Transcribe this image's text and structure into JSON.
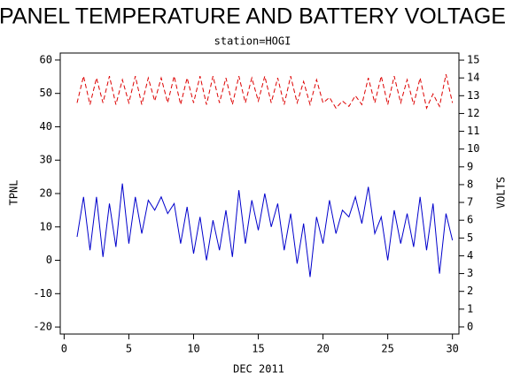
{
  "chart_data": {
    "type": "line",
    "title": "PANEL TEMPERATURE AND BATTERY VOLTAGE",
    "subtitle": "station=HOGI",
    "x_label": "DEC 2011",
    "y_label": "TPNL",
    "y2_label": "VOLTS",
    "x": [
      1,
      1.5,
      2,
      2.5,
      3,
      3.5,
      4,
      4.5,
      5,
      5.5,
      6,
      6.5,
      7,
      7.5,
      8,
      8.5,
      9,
      9.5,
      10,
      10.5,
      11,
      11.5,
      12,
      12.5,
      13,
      13.5,
      14,
      14.5,
      15,
      15.5,
      16,
      16.5,
      17,
      17.5,
      18,
      18.5,
      19,
      19.5,
      20,
      20.5,
      21,
      21.5,
      22,
      22.5,
      23,
      23.5,
      24,
      24.5,
      25,
      25.5,
      26,
      26.5,
      27,
      27.5,
      28,
      28.5,
      29,
      29.5,
      30
    ],
    "series": [
      {
        "color": "#0000cc",
        "dashed": false,
        "values": [
          7,
          19,
          3,
          19,
          1,
          17,
          4,
          23,
          5,
          19,
          8,
          18,
          15,
          19,
          14,
          17,
          5,
          16,
          2,
          13,
          0,
          12,
          3,
          15,
          1,
          21,
          5,
          18,
          9,
          20,
          10,
          17,
          3,
          14,
          -1,
          11,
          -5,
          13,
          5,
          18,
          8,
          15,
          13,
          19,
          11,
          22,
          8,
          13,
          0,
          15,
          5,
          14,
          4,
          19,
          3,
          17,
          -4,
          14,
          6
        ]
      },
      {
        "color": "#dd0000",
        "dashed": true,
        "axis": "y2",
        "values": [
          12.6,
          14.1,
          12.5,
          14,
          12.6,
          14.1,
          12.5,
          13.9,
          12.6,
          14.1,
          12.5,
          14,
          12.7,
          14,
          12.6,
          14.1,
          12.5,
          14,
          12.6,
          14.1,
          12.5,
          14.1,
          12.6,
          14,
          12.5,
          14.1,
          12.6,
          14,
          12.7,
          14.1,
          12.6,
          14,
          12.5,
          14.1,
          12.6,
          13.8,
          12.5,
          13.9,
          12.6,
          12.9,
          12.3,
          12.7,
          12.4,
          13,
          12.5,
          14,
          12.6,
          14.1,
          12.5,
          14.1,
          12.6,
          13.9,
          12.5,
          14,
          12.3,
          13.1,
          12.4,
          14.2,
          12.6
        ]
      }
    ],
    "xlim": [
      -0.3,
      30.5
    ],
    "xticks": [
      0,
      5,
      10,
      15,
      20,
      25,
      30
    ],
    "ylim": [
      -22.1,
      62.1
    ],
    "yticks": [
      -20,
      -10,
      0,
      10,
      20,
      30,
      40,
      50,
      60
    ],
    "y2lim": [
      -0.4,
      15.4
    ],
    "y2ticks": [
      0,
      1,
      2,
      3,
      4,
      5,
      6,
      7,
      8,
      9,
      10,
      11,
      12,
      13,
      14,
      15
    ]
  }
}
